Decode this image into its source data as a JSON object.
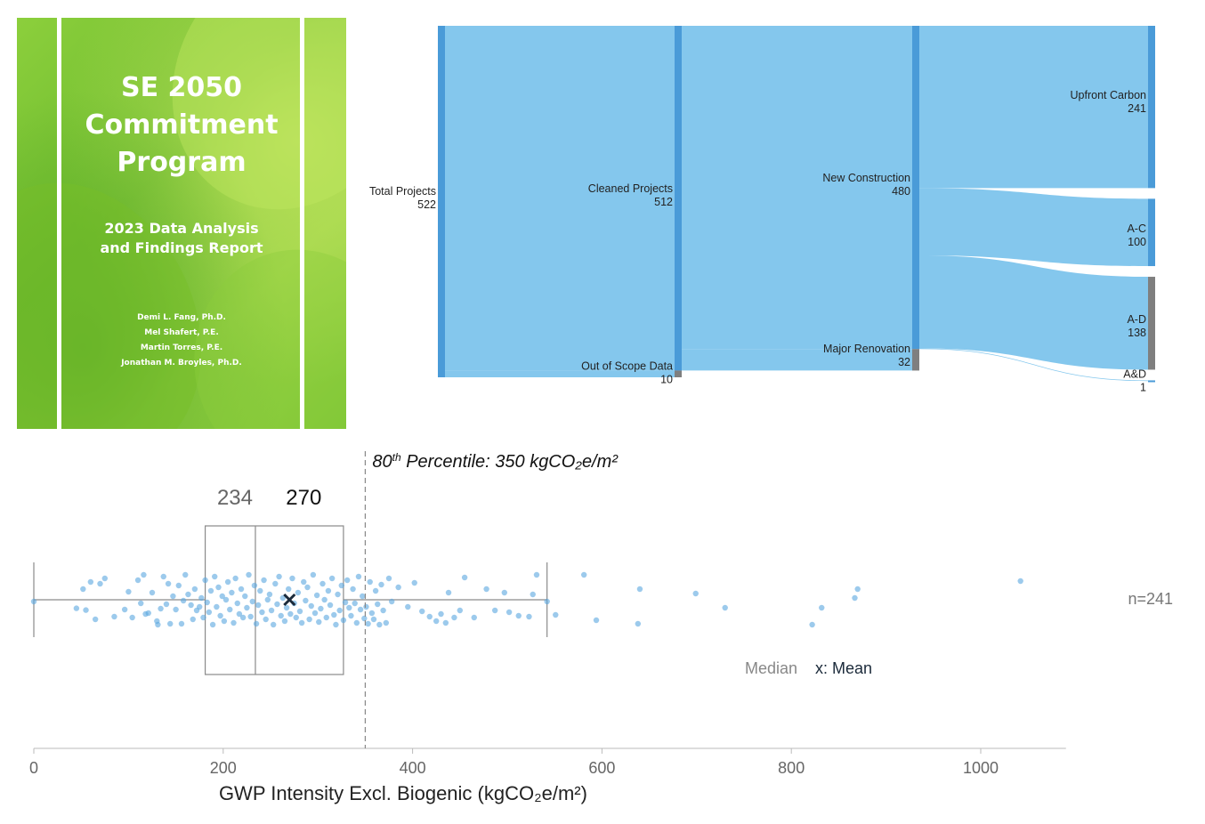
{
  "cover": {
    "title_lines": [
      "SE 2050",
      "Commitment",
      "Program"
    ],
    "subtitle_lines": [
      "2023 Data Analysis",
      "and Findings Report"
    ],
    "authors": [
      "Demi L. Fang, Ph.D.",
      "Mel Shafert, P.E.",
      "Martin Torres, P.E.",
      "Jonathan M. Broyles, Ph.D."
    ]
  },
  "chart_data": [
    {
      "type": "sankey",
      "nodes": [
        {
          "id": "total",
          "label": "Total Projects",
          "value": 522,
          "stage": 0,
          "color": "#4a9bd8"
        },
        {
          "id": "cleaned",
          "label": "Cleaned Projects",
          "value": 512,
          "stage": 1,
          "color": "#4a9bd8"
        },
        {
          "id": "oos",
          "label": "Out of Scope Data",
          "value": 10,
          "stage": 1,
          "color": "#7f7f7f"
        },
        {
          "id": "newc",
          "label": "New Construction",
          "value": 480,
          "stage": 2,
          "color": "#4a9bd8"
        },
        {
          "id": "major",
          "label": "Major Renovation",
          "value": 32,
          "stage": 2,
          "color": "#7f7f7f"
        },
        {
          "id": "upfront",
          "label": "Upfront Carbon",
          "value": 241,
          "stage": 3,
          "color": "#4a9bd8"
        },
        {
          "id": "ac",
          "label": "A-C",
          "value": 100,
          "stage": 3,
          "color": "#4a9bd8"
        },
        {
          "id": "ad",
          "label": "A-D",
          "value": 138,
          "stage": 3,
          "color": "#7f7f7f"
        },
        {
          "id": "aandd",
          "label": "A&D",
          "value": 1,
          "stage": 3,
          "color": "#4a9bd8"
        }
      ],
      "links": [
        {
          "source": "total",
          "target": "cleaned",
          "value": 512
        },
        {
          "source": "total",
          "target": "oos",
          "value": 10
        },
        {
          "source": "cleaned",
          "target": "newc",
          "value": 480
        },
        {
          "source": "cleaned",
          "target": "major",
          "value": 32
        },
        {
          "source": "newc",
          "target": "upfront",
          "value": 241
        },
        {
          "source": "newc",
          "target": "ac",
          "value": 100
        },
        {
          "source": "newc",
          "target": "ad",
          "value": 138
        },
        {
          "source": "newc",
          "target": "aandd",
          "value": 1
        }
      ],
      "link_color": "#7dc4ec"
    },
    {
      "type": "box",
      "xlabel": "GWP Intensity Excl. Biogenic (kgCO₂e/m²)",
      "xlim": [
        0,
        1090
      ],
      "xticks": [
        0,
        200,
        400,
        600,
        800,
        1000
      ],
      "n_label": "n=241",
      "stats": {
        "min": 0,
        "q1": 181,
        "median": 234,
        "mean": 270,
        "q3": 327,
        "whisker_high": 542
      },
      "median_label": "234",
      "mean_label": "270",
      "percentile_line": {
        "value": 350,
        "sup": "th",
        "label_before": "80",
        "label_after": " Percentile: 350 kgCO₂e/m²"
      },
      "legend": {
        "median": "Median",
        "mean": "x: Mean"
      },
      "colors": {
        "points": "#5aa6e0",
        "box": "#8a8a8a",
        "mean_marker": "#1b2a3a"
      },
      "points": [
        [
          0,
          0.1
        ],
        [
          45,
          0.48
        ],
        [
          52,
          -0.6
        ],
        [
          55,
          0.58
        ],
        [
          60,
          -1.0
        ],
        [
          65,
          1.1
        ],
        [
          70,
          -0.9
        ],
        [
          75,
          -1.2
        ],
        [
          85,
          0.95
        ],
        [
          96,
          0.55
        ],
        [
          100,
          -0.45
        ],
        [
          104,
          1.0
        ],
        [
          110,
          -1.1
        ],
        [
          113,
          0.2
        ],
        [
          116,
          -1.4
        ],
        [
          118,
          0.8
        ],
        [
          121,
          0.75
        ],
        [
          125,
          -0.4
        ],
        [
          130,
          1.2
        ],
        [
          131,
          1.4
        ],
        [
          134,
          0.5
        ],
        [
          137,
          -1.3
        ],
        [
          140,
          0.25
        ],
        [
          142,
          -0.9
        ],
        [
          144,
          1.35
        ],
        [
          147,
          -0.2
        ],
        [
          150,
          0.55
        ],
        [
          153,
          -0.8
        ],
        [
          156,
          1.35
        ],
        [
          158,
          0.05
        ],
        [
          160,
          -1.4
        ],
        [
          163,
          -0.3
        ],
        [
          166,
          0.3
        ],
        [
          168,
          1.1
        ],
        [
          170,
          -0.6
        ],
        [
          172,
          0.6
        ],
        [
          175,
          0.4
        ],
        [
          177,
          -0.1
        ],
        [
          179,
          1.0
        ],
        [
          181,
          -1.1
        ],
        [
          183,
          0.15
        ],
        [
          185,
          0.7
        ],
        [
          187,
          -0.5
        ],
        [
          189,
          1.4
        ],
        [
          191,
          -1.3
        ],
        [
          193,
          0.4
        ],
        [
          195,
          -0.7
        ],
        [
          197,
          0.9
        ],
        [
          199,
          -0.2
        ],
        [
          201,
          1.2
        ],
        [
          203,
          0.0
        ],
        [
          205,
          -1.0
        ],
        [
          207,
          0.55
        ],
        [
          209,
          -0.4
        ],
        [
          211,
          1.3
        ],
        [
          213,
          -1.2
        ],
        [
          215,
          0.2
        ],
        [
          217,
          0.8
        ],
        [
          219,
          -0.6
        ],
        [
          221,
          1.0
        ],
        [
          223,
          -0.2
        ],
        [
          225,
          0.45
        ],
        [
          227,
          -1.4
        ],
        [
          229,
          0.95
        ],
        [
          231,
          0.1
        ],
        [
          233,
          -0.8
        ],
        [
          235,
          1.35
        ],
        [
          237,
          0.3
        ],
        [
          239,
          -0.5
        ],
        [
          241,
          0.7
        ],
        [
          243,
          -1.1
        ],
        [
          245,
          1.1
        ],
        [
          247,
          0.0
        ],
        [
          249,
          -0.3
        ],
        [
          251,
          0.6
        ],
        [
          253,
          1.4
        ],
        [
          255,
          -0.9
        ],
        [
          257,
          0.25
        ],
        [
          259,
          -1.3
        ],
        [
          261,
          0.9
        ],
        [
          263,
          -0.1
        ],
        [
          265,
          1.2
        ],
        [
          267,
          0.45
        ],
        [
          269,
          -0.6
        ],
        [
          271,
          0.8
        ],
        [
          273,
          -1.2
        ],
        [
          275,
          0.2
        ],
        [
          277,
          1.0
        ],
        [
          279,
          -0.4
        ],
        [
          281,
          0.65
        ],
        [
          283,
          1.3
        ],
        [
          285,
          -1.0
        ],
        [
          287,
          0.05
        ],
        [
          289,
          -0.7
        ],
        [
          291,
          1.1
        ],
        [
          293,
          0.35
        ],
        [
          295,
          -1.4
        ],
        [
          297,
          0.75
        ],
        [
          299,
          -0.25
        ],
        [
          301,
          1.25
        ],
        [
          303,
          0.5
        ],
        [
          305,
          -0.9
        ],
        [
          307,
          0.0
        ],
        [
          309,
          1.0
        ],
        [
          311,
          -0.5
        ],
        [
          313,
          0.3
        ],
        [
          315,
          -1.2
        ],
        [
          317,
          0.85
        ],
        [
          319,
          1.4
        ],
        [
          321,
          -0.3
        ],
        [
          323,
          0.6
        ],
        [
          325,
          -0.8
        ],
        [
          327,
          1.15
        ],
        [
          329,
          0.15
        ],
        [
          331,
          -1.1
        ],
        [
          333,
          0.45
        ],
        [
          335,
          0.9
        ],
        [
          337,
          -0.6
        ],
        [
          339,
          0.2
        ],
        [
          341,
          1.3
        ],
        [
          343,
          -1.3
        ],
        [
          345,
          0.55
        ],
        [
          347,
          -0.2
        ],
        [
          349,
          1.05
        ],
        [
          351,
          0.4
        ],
        [
          353,
          1.35
        ],
        [
          355,
          -1.0
        ],
        [
          357,
          0.75
        ],
        [
          359,
          1.1
        ],
        [
          361,
          -0.5
        ],
        [
          363,
          0.25
        ],
        [
          365,
          1.4
        ],
        [
          367,
          -0.85
        ],
        [
          369,
          0.6
        ],
        [
          372,
          1.3
        ],
        [
          375,
          -1.2
        ],
        [
          378,
          0.1
        ],
        [
          385,
          -0.7
        ],
        [
          395,
          0.4
        ],
        [
          402,
          -0.95
        ],
        [
          410,
          0.65
        ],
        [
          418,
          0.95
        ],
        [
          425,
          1.2
        ],
        [
          430,
          0.8
        ],
        [
          435,
          1.3
        ],
        [
          438,
          -0.4
        ],
        [
          444,
          1.0
        ],
        [
          450,
          0.6
        ],
        [
          455,
          -1.25
        ],
        [
          465,
          1.0
        ],
        [
          478,
          -0.6
        ],
        [
          487,
          0.6
        ],
        [
          497,
          -0.4
        ],
        [
          502,
          0.7
        ],
        [
          512,
          0.9
        ],
        [
          523,
          0.95
        ],
        [
          527,
          -0.3
        ],
        [
          531,
          -1.4
        ],
        [
          542,
          0.1
        ],
        [
          551,
          0.85
        ],
        [
          581,
          -1.4
        ],
        [
          594,
          1.15
        ],
        [
          638,
          1.35
        ],
        [
          640,
          -0.6
        ],
        [
          699,
          -0.35
        ],
        [
          730,
          0.45
        ],
        [
          822,
          1.4
        ],
        [
          832,
          0.45
        ],
        [
          867,
          -0.1
        ],
        [
          870,
          -0.6
        ],
        [
          1042,
          -1.05
        ]
      ]
    }
  ]
}
